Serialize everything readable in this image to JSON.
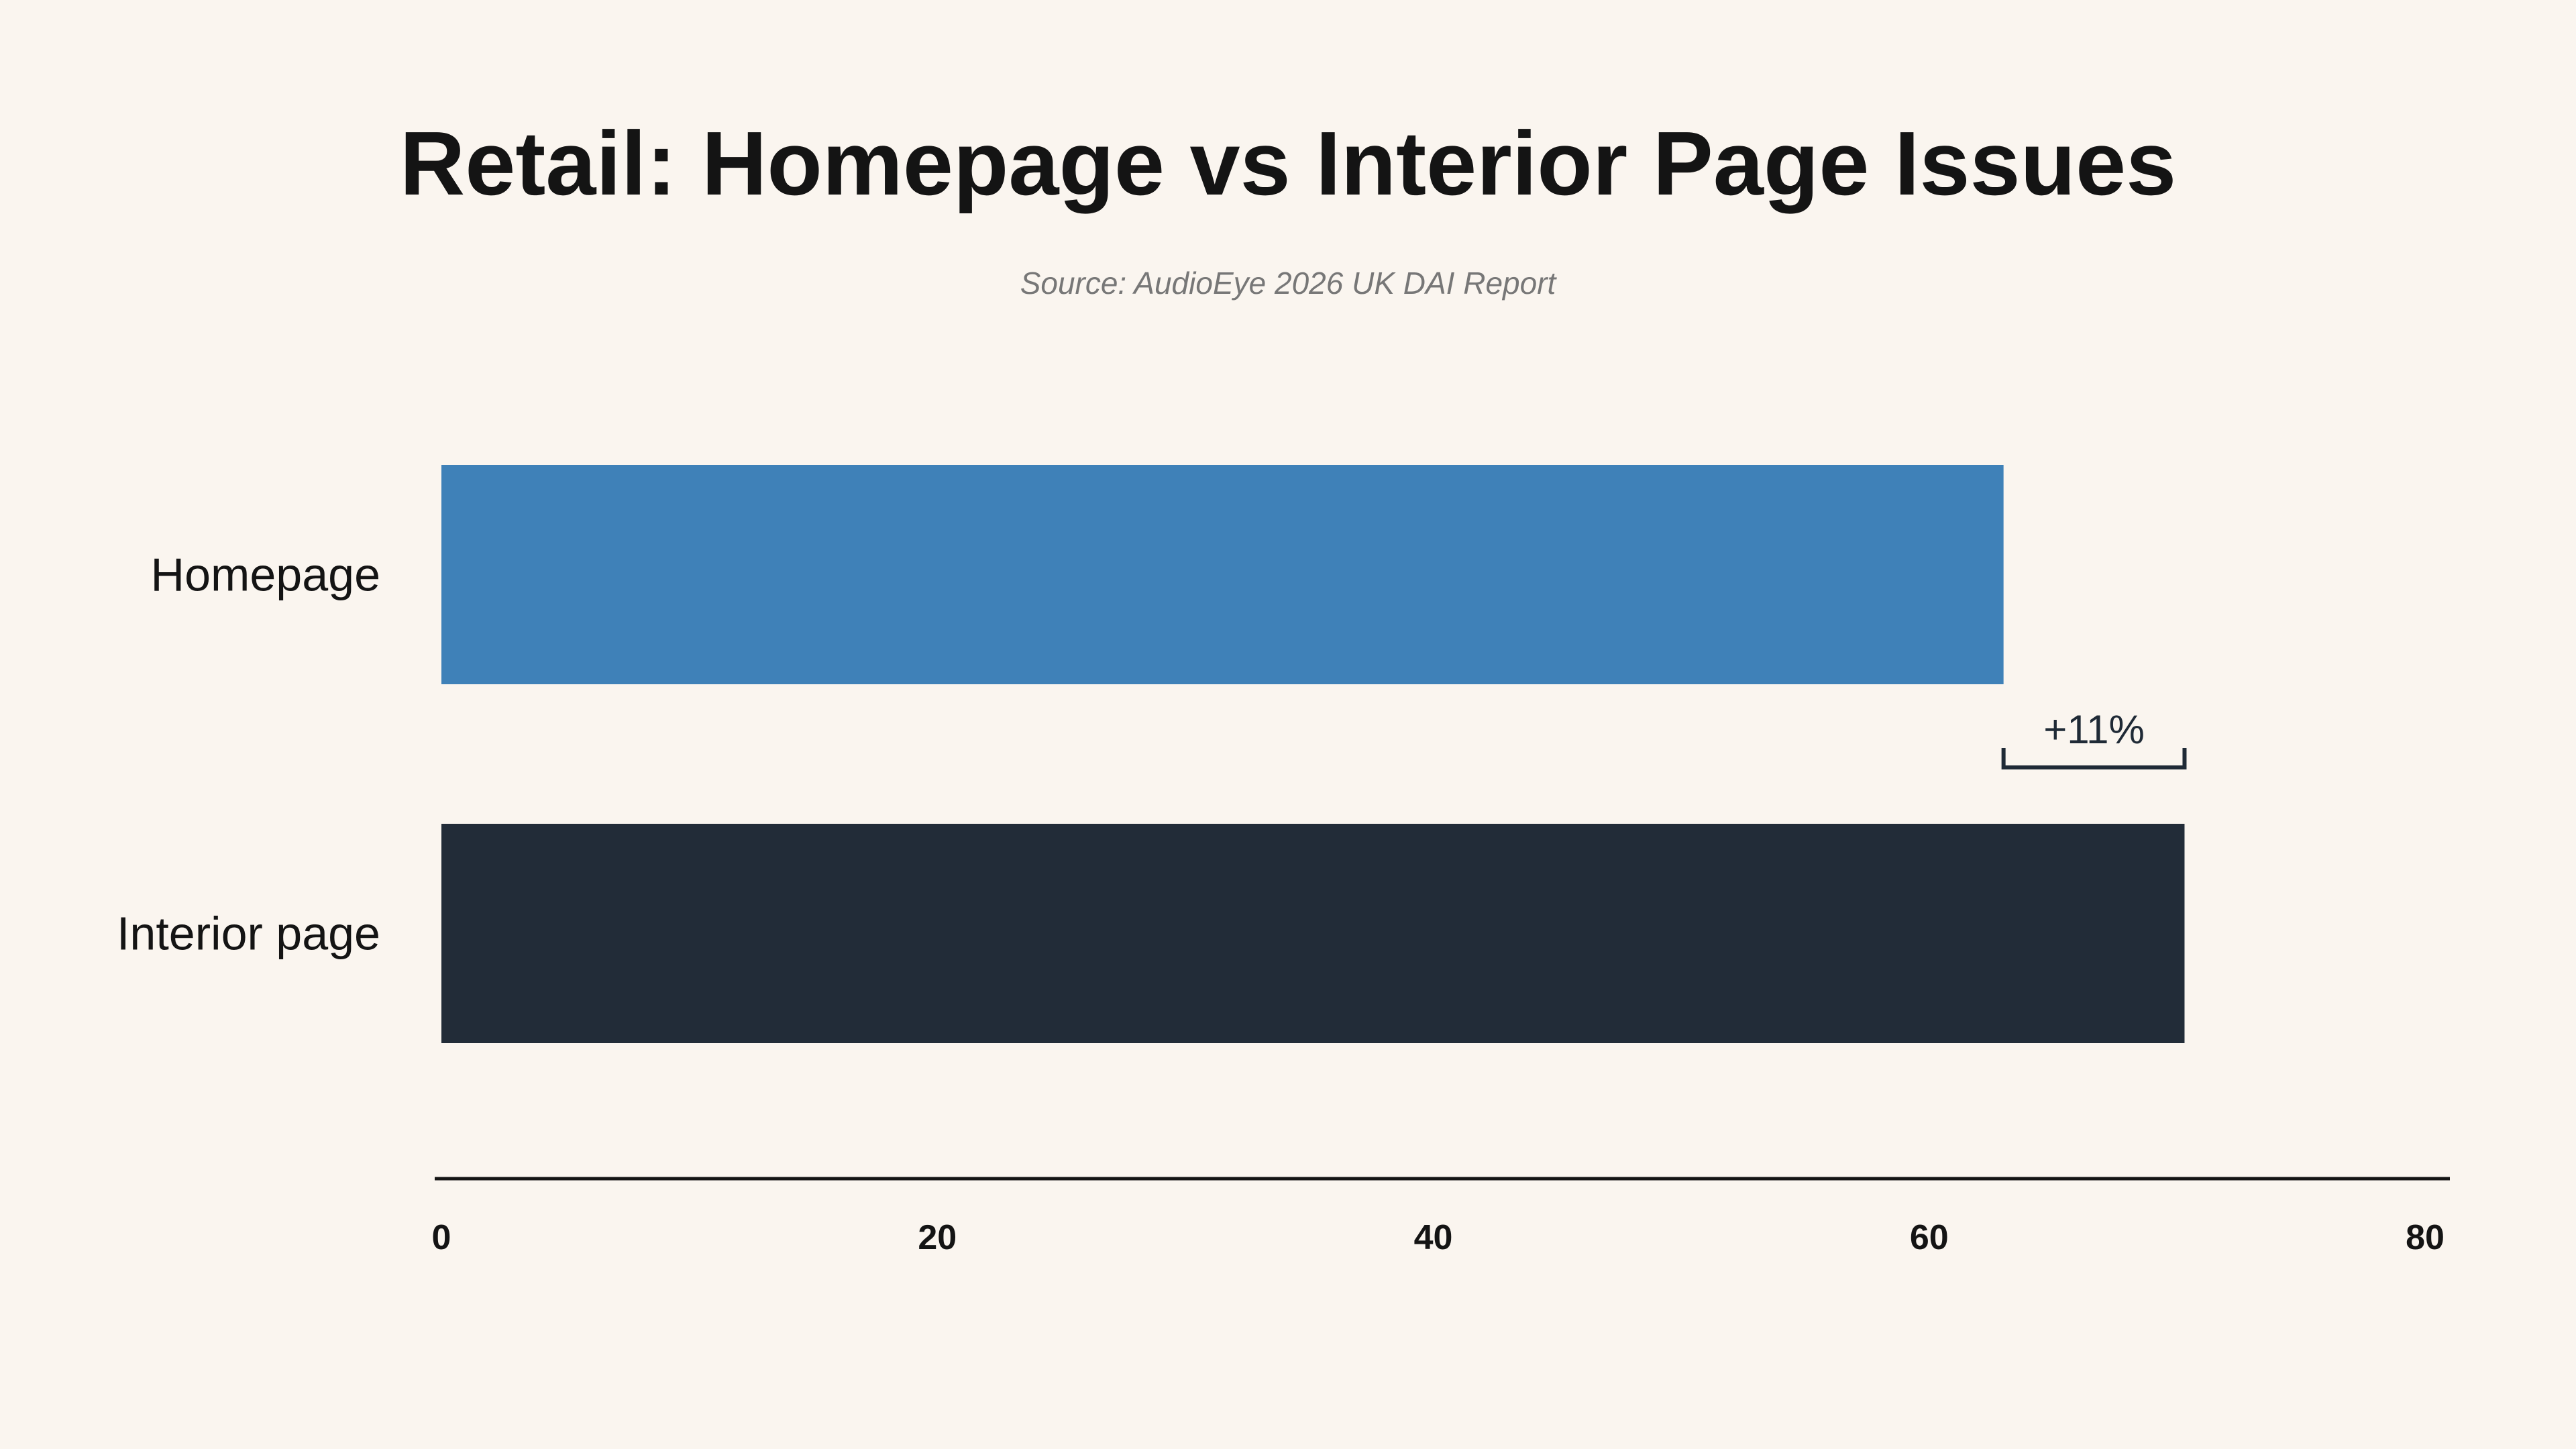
{
  "chart_data": {
    "type": "bar",
    "orientation": "horizontal",
    "title": "Retail: Homepage vs Interior Page Issues",
    "subtitle": "Source: AudioEye 2026 UK DAI Report",
    "categories": [
      "Homepage",
      "Interior page"
    ],
    "values": [
      63,
      70.3
    ],
    "colors": [
      "#3f81b8",
      "#222c38"
    ],
    "xlim": [
      0,
      80
    ],
    "xticks": [
      0,
      20,
      40,
      60,
      80
    ],
    "xlabel": "",
    "ylabel": "",
    "grid": false,
    "annotation": {
      "label": "+11%",
      "from": 63,
      "to": 70.3
    }
  }
}
